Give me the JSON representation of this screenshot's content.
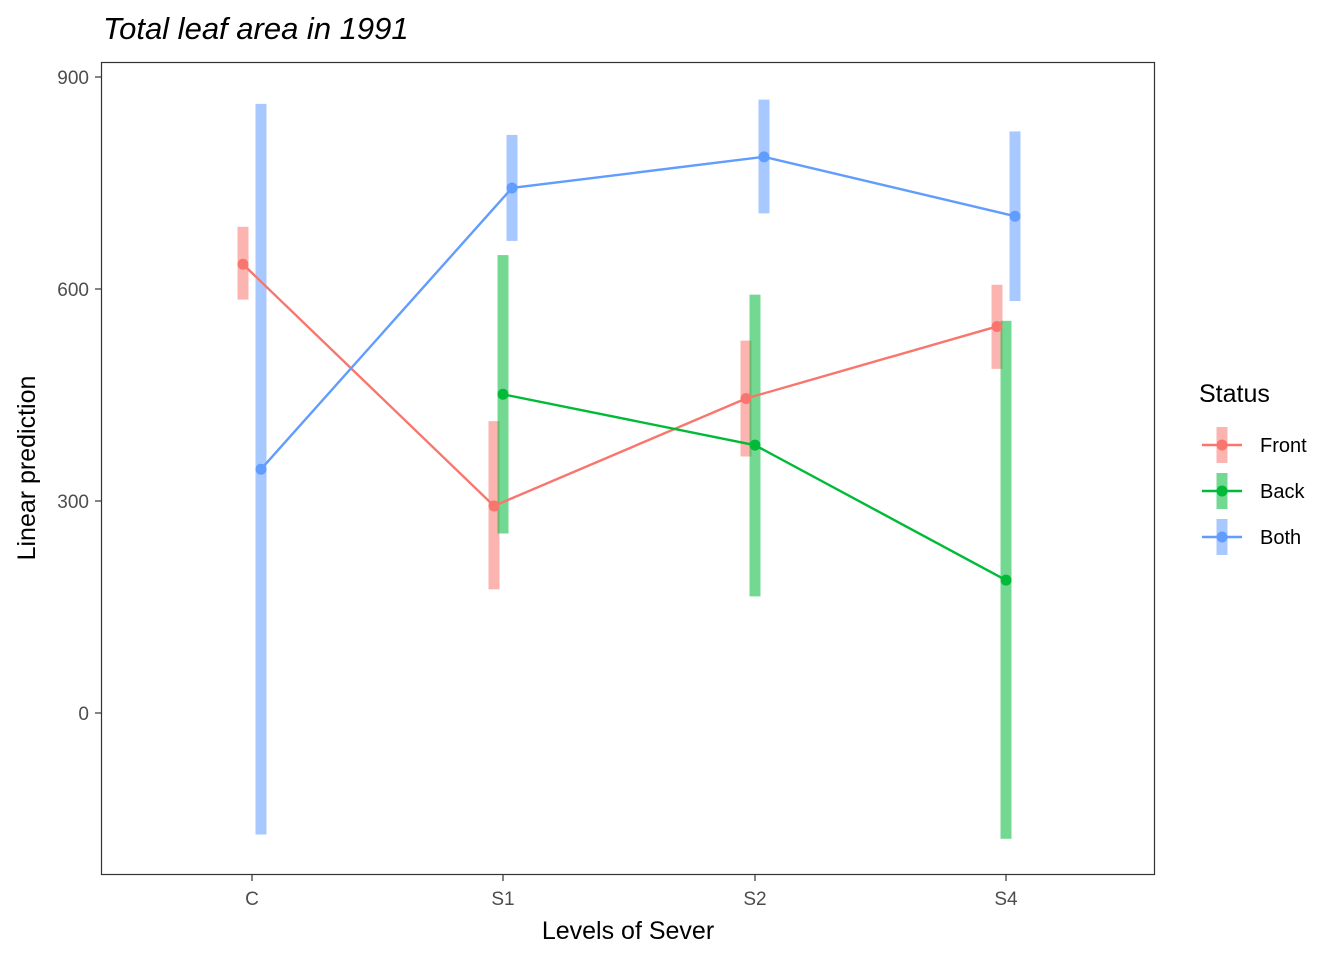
{
  "chart_data": {
    "type": "line",
    "title": "Total leaf area in 1991",
    "xlabel": "Levels of Sever",
    "ylabel": "Linear prediction",
    "categories": [
      "C",
      "S1",
      "S2",
      "S4"
    ],
    "ylim": [
      -225,
      920
    ],
    "yticks": [
      0,
      300,
      600,
      900
    ],
    "grid": false,
    "legend": {
      "title": "Status",
      "position": "right"
    },
    "series": [
      {
        "name": "Front",
        "color": "#F8766D",
        "points": [
          {
            "x": "C",
            "y": 635,
            "lower": 585,
            "upper": 688
          },
          {
            "x": "S1",
            "y": 293,
            "lower": 175,
            "upper": 413
          },
          {
            "x": "S2",
            "y": 445,
            "lower": 363,
            "upper": 527
          },
          {
            "x": "S4",
            "y": 547,
            "lower": 487,
            "upper": 606
          }
        ]
      },
      {
        "name": "Back",
        "color": "#00BA38",
        "points": [
          {
            "x": "S1",
            "y": 451,
            "lower": 254,
            "upper": 648
          },
          {
            "x": "S2",
            "y": 379,
            "lower": 165,
            "upper": 592
          },
          {
            "x": "S4",
            "y": 188,
            "lower": -178,
            "upper": 555
          }
        ]
      },
      {
        "name": "Both",
        "color": "#619CFF",
        "points": [
          {
            "x": "C",
            "y": 345,
            "lower": -172,
            "upper": 862
          },
          {
            "x": "S1",
            "y": 743,
            "lower": 668,
            "upper": 818
          },
          {
            "x": "S2",
            "y": 787,
            "lower": 707,
            "upper": 868
          },
          {
            "x": "S4",
            "y": 703,
            "lower": 583,
            "upper": 823
          }
        ]
      }
    ]
  }
}
